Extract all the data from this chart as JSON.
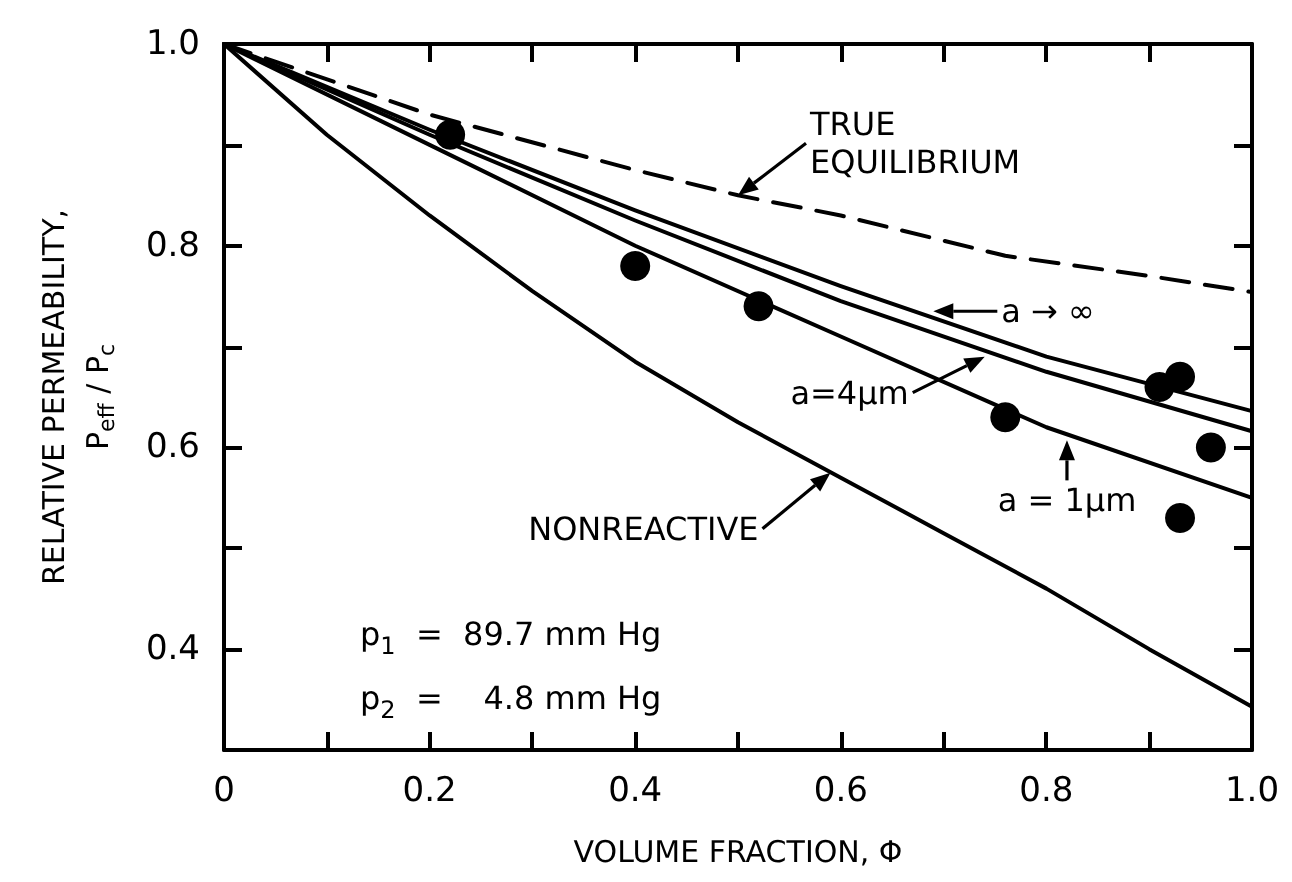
{
  "chart_data": {
    "type": "line",
    "xlabel": "VOLUME FRACTION, Φ",
    "ylabel": "RELATIVE PERMEABILITY,\nP$_{eff}$ / P$_{c}$",
    "xlim": [
      0,
      1.0
    ],
    "ylim": [
      0.3,
      1.0
    ],
    "xticks": [
      {
        "value": 0,
        "label": "0"
      },
      {
        "value": 0.1,
        "label": null
      },
      {
        "value": 0.2,
        "label": "0.2"
      },
      {
        "value": 0.3,
        "label": null
      },
      {
        "value": 0.4,
        "label": "0.4"
      },
      {
        "value": 0.5,
        "label": null
      },
      {
        "value": 0.6,
        "label": "0.6"
      },
      {
        "value": 0.7,
        "label": null
      },
      {
        "value": 0.8,
        "label": "0.8"
      },
      {
        "value": 0.9,
        "label": null
      },
      {
        "value": 1.0,
        "label": "1.0"
      }
    ],
    "yticks": [
      {
        "value": 0.4,
        "label": "0.4"
      },
      {
        "value": 0.5,
        "label": null
      },
      {
        "value": 0.6,
        "label": "0.6"
      },
      {
        "value": 0.7,
        "label": null
      },
      {
        "value": 0.8,
        "label": "0.8"
      },
      {
        "value": 0.9,
        "label": null
      },
      {
        "value": 1.0,
        "label": "1.0"
      }
    ],
    "grid": false,
    "series": [
      {
        "color": "#000000",
        "line_style": "dashed",
        "marker": "none",
        "x": [
          0,
          0.2,
          0.4,
          0.5,
          0.6,
          0.76,
          0.9,
          1.0
        ],
        "values": [
          1.0,
          0.93,
          0.875,
          0.85,
          0.83,
          0.79,
          0.77,
          0.754
        ]
      },
      {
        "color": "#000000",
        "line_style": "solid",
        "marker": "none",
        "x": [
          0,
          0.2,
          0.4,
          0.6,
          0.8,
          1.0
        ],
        "values": [
          1.0,
          0.915,
          0.835,
          0.76,
          0.69,
          0.636
        ]
      },
      {
        "color": "#000000",
        "line_style": "solid",
        "marker": "none",
        "x": [
          0,
          0.2,
          0.4,
          0.6,
          0.8,
          1.0
        ],
        "values": [
          1.0,
          0.91,
          0.825,
          0.745,
          0.675,
          0.616
        ]
      },
      {
        "color": "#000000",
        "line_style": "solid",
        "marker": "none",
        "x": [
          0,
          0.2,
          0.4,
          0.6,
          0.8,
          1.0
        ],
        "values": [
          1.0,
          0.9,
          0.8,
          0.71,
          0.62,
          0.55
        ]
      },
      {
        "color": "#000000",
        "line_style": "solid",
        "marker": "none",
        "x": [
          0,
          0.1,
          0.2,
          0.3,
          0.4,
          0.5,
          0.6,
          0.7,
          0.8,
          0.9,
          1.0
        ],
        "values": [
          1.0,
          0.91,
          0.83,
          0.755,
          0.685,
          0.625,
          0.57,
          0.515,
          0.46,
          0.4,
          0.343
        ]
      },
      {
        "type": "scatter",
        "color": "#000000",
        "marker": "circle",
        "x": [
          0.22,
          0.4,
          0.52,
          0.76,
          0.91,
          0.93,
          0.96,
          0.93
        ],
        "values": [
          0.91,
          0.78,
          0.74,
          0.63,
          0.66,
          0.67,
          0.6,
          0.53
        ]
      }
    ],
    "annotations": [
      {
        "text": "TRUE\nEQUILIBRIUM",
        "x": 0.5,
        "y": 0.85
      },
      {
        "text": "a → ∞",
        "x": 0.69,
        "y": 0.735
      },
      {
        "text": "a=4μm",
        "x": 0.74,
        "y": 0.69
      },
      {
        "text": "a = 1μm",
        "x": 0.82,
        "y": 0.607
      },
      {
        "text": "NONREACTIVE",
        "x": 0.59,
        "y": 0.575
      },
      "p$_{1}$  =  89.7 mm Hg",
      "p$_{2}$  =    4.8 mm Hg"
    ]
  }
}
